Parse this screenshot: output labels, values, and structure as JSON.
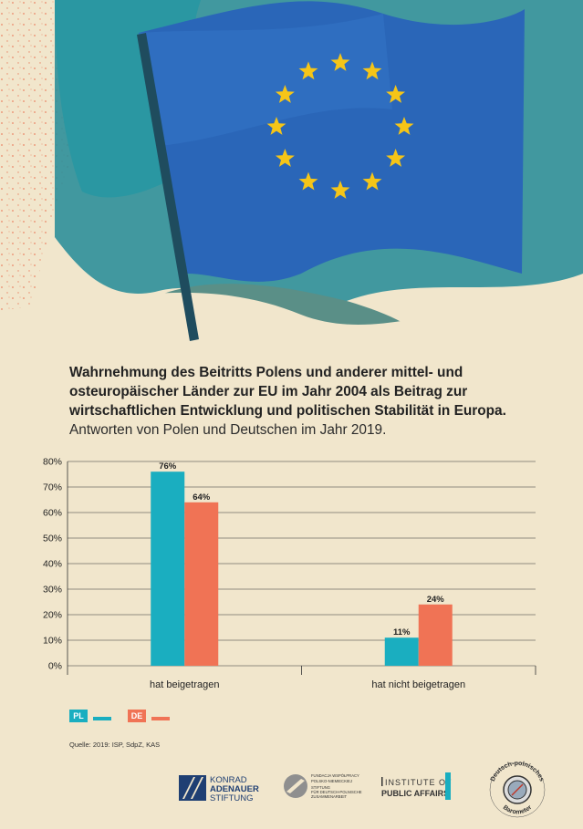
{
  "title": {
    "line1": "Wahrnehmung des Beitritts Polens und anderer mittel- und",
    "line2": "osteuropäischer Länder zur EU im Jahr 2004 als Beitrag zur",
    "line3": "wirtschaftlichen Entwicklung und politischen Stabilität in Europa.",
    "subtitle": "Antworten von Polen und Deutschen im Jahr 2019."
  },
  "colors": {
    "pl": "#1aaec0",
    "de": "#f07355",
    "flag": "#2a66b8",
    "star": "#f5c518",
    "background": "#f1e6cc"
  },
  "chart_data": {
    "type": "bar",
    "categories": [
      "hat beigetragen",
      "hat nicht beigetragen"
    ],
    "series": [
      {
        "name": "PL",
        "values": [
          76,
          11
        ],
        "labels": [
          "76%",
          "11%"
        ]
      },
      {
        "name": "DE",
        "values": [
          64,
          24
        ],
        "labels": [
          "64%",
          "24%"
        ]
      }
    ],
    "ylim": [
      0,
      80
    ],
    "yticks": [
      "0%",
      "10%",
      "20%",
      "30%",
      "40%",
      "50%",
      "60%",
      "70%",
      "80%"
    ],
    "grid": true,
    "legend": "bottom-left"
  },
  "legend": {
    "pl": "PL",
    "de": "DE"
  },
  "source": "Quelle:  2019: ISP, SdpZ, KAS",
  "logos": {
    "kas_line1": "KONRAD",
    "kas_line2": "ADENAUER",
    "kas_line3": "STIFTUNG",
    "fwpn_line1": "FUNDACJA WSPÓŁPRACY",
    "fwpn_line2": "POLSKO-NIEMIECKIEJ",
    "fwpn_line3": "STIFTUNG",
    "fwpn_line4": "FÜR DEUTSCH-POLNISCHE",
    "fwpn_line5": "ZUSAMMENARBEIT",
    "isp_line1": "INSTITUTE OF",
    "isp_line2": "PUBLIC AFFAIRS",
    "barometer_top": "Deutsch-polnisches",
    "barometer_bottom": "Barometer"
  }
}
